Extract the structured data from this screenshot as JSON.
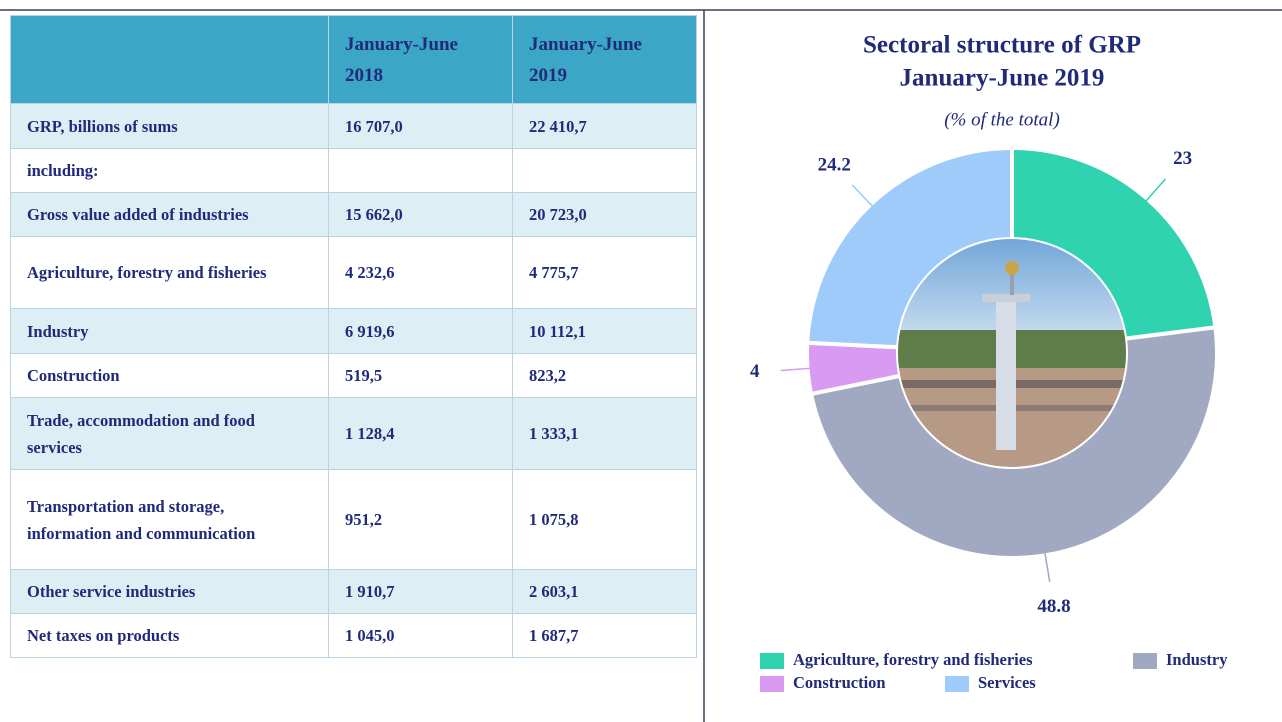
{
  "table": {
    "header": [
      "January-June 2018",
      "January-June 2019"
    ],
    "rows": [
      [
        "GRP, billions of sums",
        "16 707,0",
        "22 410,7"
      ],
      [
        "including:"
      ],
      [
        "Gross value added of industries",
        "15 662,0",
        "20 723,0"
      ],
      [
        "Agriculture, forestry and fisheries",
        "4 232,6",
        "4 775,7"
      ],
      [
        "Industry",
        "6 919,6",
        "10 112,1"
      ],
      [
        "Construction",
        "519,5",
        "823,2"
      ],
      [
        "Trade, accommodation and food services",
        "1 128,4",
        "1 333,1"
      ],
      [
        "Transportation and storage, information and communication",
        "951,2",
        "1 075,8"
      ],
      [
        "Other service industries",
        "1 910,7",
        "2 603,1"
      ],
      [
        "Net taxes on products",
        "1 045,0",
        "1 687,7"
      ]
    ]
  },
  "chart_data": {
    "type": "donut",
    "title": "Sectoral structure of GRP",
    "title_line2": "January-June 2019",
    "subtitle": "(% of the total)",
    "categories": [
      "Agriculture, forestry and fisheries",
      "Industry",
      "Construction",
      "Services"
    ],
    "values": [
      23,
      48.8,
      4,
      24.2
    ],
    "colors": [
      "#2fd3b0",
      "#a1a9c2",
      "#d99bf1",
      "#9ecbf9"
    ]
  }
}
